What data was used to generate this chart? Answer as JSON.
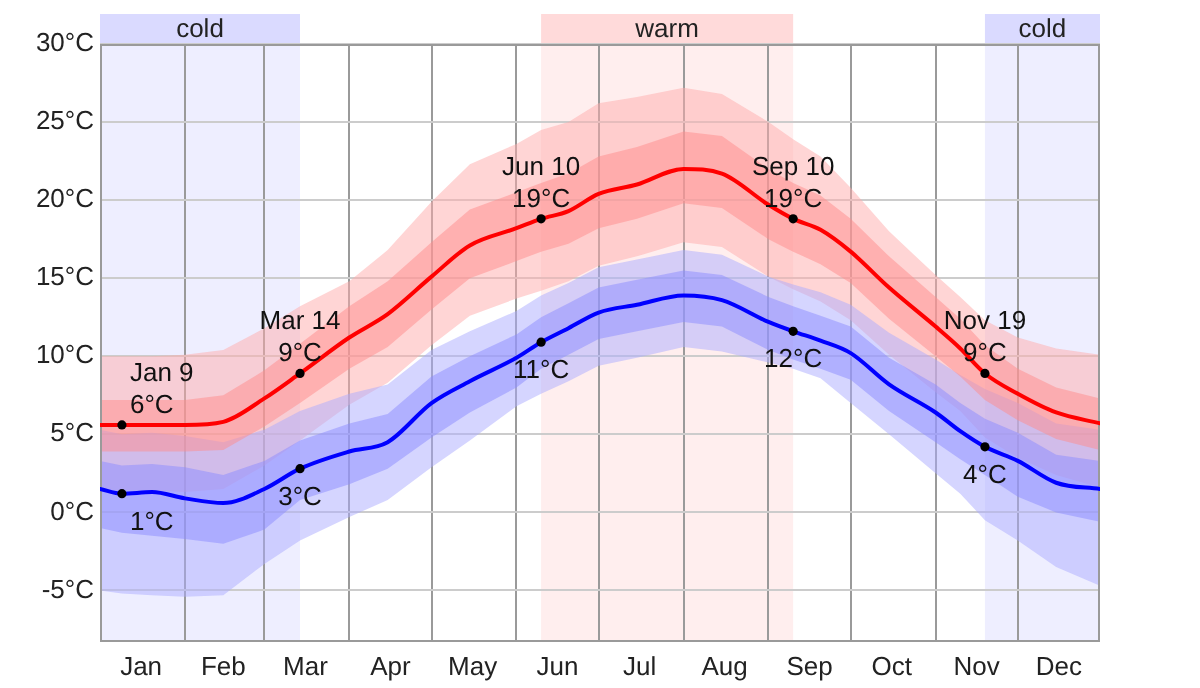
{
  "chart_data": {
    "type": "line",
    "x": [
      "--01-01",
      "--01-09",
      "--01-20",
      "--02-01",
      "--02-15",
      "--03-01",
      "--03-14",
      "--04-01",
      "--04-15",
      "--05-01",
      "--05-15",
      "--06-01",
      "--06-10",
      "--06-20",
      "--07-01",
      "--07-15",
      "--08-01",
      "--08-15",
      "--09-01",
      "--09-10",
      "--09-20",
      "--10-01",
      "--10-15",
      "--11-01",
      "--11-10",
      "--11-19",
      "--12-01",
      "--12-15",
      "--12-31"
    ],
    "series": [
      {
        "color": "#ffd5d5",
        "values": [
          null,
          null,
          null,
          null,
          null,
          null,
          null,
          null,
          null,
          null,
          null,
          null,
          null,
          null,
          null,
          null,
          null,
          null,
          null,
          null,
          null,
          null,
          null,
          null,
          null,
          null,
          null,
          null,
          null
        ],
        "lower": [
          1.5,
          1.4,
          1.4,
          1.3,
          1.5,
          3.0,
          4.6,
          6.9,
          8.3,
          10.7,
          12.6,
          13.7,
          14.2,
          14.8,
          15.8,
          16.4,
          17.3,
          17.0,
          15.1,
          14.3,
          13.5,
          12.3,
          10.1,
          7.7,
          6.5,
          4.8,
          3.5,
          2.4,
          1.6
        ],
        "upper": [
          10.0,
          10.0,
          10.0,
          10.1,
          10.4,
          11.8,
          13.2,
          14.8,
          16.8,
          19.9,
          22.3,
          23.6,
          24.5,
          25.0,
          26.2,
          26.6,
          27.2,
          26.8,
          25.0,
          23.9,
          22.8,
          20.8,
          18.0,
          15.2,
          13.8,
          12.3,
          11.2,
          10.5,
          10.1
        ]
      },
      {
        "color": "#ffb0b0",
        "values": [
          null,
          null,
          null,
          null,
          null,
          null,
          null,
          null,
          null,
          null,
          null,
          null,
          null,
          null,
          null,
          null,
          null,
          null,
          null,
          null,
          null,
          null,
          null,
          null,
          null,
          null,
          null,
          null,
          null
        ],
        "lower": [
          3.9,
          3.9,
          3.9,
          3.9,
          4.0,
          5.5,
          7.0,
          9.2,
          10.6,
          13.0,
          15.0,
          16.1,
          16.7,
          17.2,
          18.2,
          18.8,
          19.8,
          19.5,
          17.5,
          16.7,
          15.9,
          14.7,
          12.4,
          10.0,
          8.7,
          7.2,
          5.9,
          4.7,
          4.0
        ],
        "upper": [
          7.2,
          7.2,
          7.2,
          7.2,
          7.5,
          9.1,
          10.8,
          13.2,
          14.8,
          17.3,
          19.4,
          20.5,
          21.1,
          21.7,
          22.8,
          23.4,
          24.4,
          24.1,
          22.0,
          21.1,
          20.3,
          18.8,
          16.4,
          13.8,
          12.4,
          10.7,
          9.2,
          8.0,
          7.3
        ]
      },
      {
        "color": "#d5d5ff",
        "values": [
          null,
          null,
          null,
          null,
          null,
          null,
          null,
          null,
          null,
          null,
          null,
          null,
          null,
          null,
          null,
          null,
          null,
          null,
          null,
          null,
          null,
          null,
          null,
          null,
          null,
          null,
          null,
          null,
          null
        ],
        "lower": [
          -5.0,
          -5.2,
          -5.3,
          -5.4,
          -5.3,
          -3.3,
          -1.8,
          -0.3,
          0.8,
          2.9,
          4.6,
          6.8,
          7.6,
          8.4,
          9.4,
          9.9,
          10.6,
          10.3,
          9.6,
          9.2,
          8.6,
          7.0,
          5.0,
          2.5,
          1.2,
          -0.5,
          -1.8,
          -3.5,
          -4.7
        ],
        "upper": [
          5.3,
          5.0,
          5.1,
          4.9,
          4.5,
          5.3,
          6.5,
          7.6,
          8.2,
          10.4,
          11.6,
          12.9,
          13.9,
          14.7,
          15.7,
          16.2,
          16.8,
          16.5,
          15.1,
          14.6,
          14.1,
          13.3,
          11.5,
          9.8,
          8.8,
          7.9,
          7.0,
          5.7,
          5.3
        ]
      },
      {
        "color": "#b0b0ff",
        "values": [
          null,
          null,
          null,
          null,
          null,
          null,
          null,
          null,
          null,
          null,
          null,
          null,
          null,
          null,
          null,
          null,
          null,
          null,
          null,
          null,
          null,
          null,
          null,
          null,
          null,
          null,
          null,
          null,
          null
        ],
        "lower": [
          -1.0,
          -1.3,
          -1.5,
          -1.7,
          -2.0,
          -1.1,
          0.8,
          1.8,
          2.8,
          4.8,
          6.4,
          8.0,
          9.2,
          10.1,
          11.1,
          11.6,
          12.2,
          11.9,
          10.4,
          9.8,
          9.2,
          8.5,
          6.5,
          4.5,
          3.4,
          2.4,
          1.0,
          0.0,
          -0.6
        ],
        "upper": [
          3.3,
          3.0,
          3.1,
          2.9,
          2.4,
          3.3,
          4.6,
          5.7,
          6.3,
          8.7,
          10.0,
          11.4,
          12.5,
          13.4,
          14.4,
          14.9,
          15.5,
          15.2,
          13.8,
          13.2,
          12.6,
          11.9,
          9.9,
          8.2,
          7.0,
          6.0,
          5.1,
          3.7,
          3.3
        ]
      },
      {
        "color": "#ff0000",
        "values": [
          5.6,
          5.6,
          5.6,
          5.6,
          5.8,
          7.3,
          8.9,
          11.2,
          12.7,
          15.1,
          17.1,
          18.2,
          18.8,
          19.3,
          20.4,
          21.0,
          22.0,
          21.7,
          19.7,
          18.8,
          18.1,
          16.7,
          14.4,
          11.9,
          10.5,
          8.9,
          7.6,
          6.4,
          5.7
        ]
      },
      {
        "color": "#0000ff",
        "values": [
          1.5,
          1.2,
          1.3,
          0.9,
          0.6,
          1.5,
          2.8,
          3.9,
          4.5,
          7.0,
          8.4,
          9.9,
          10.9,
          11.8,
          12.8,
          13.3,
          13.9,
          13.6,
          12.2,
          11.6,
          11.0,
          10.2,
          8.2,
          6.4,
          5.2,
          4.2,
          3.3,
          1.9,
          1.5
        ]
      }
    ],
    "xlim": [
      "--01-01",
      "--12-31"
    ],
    "xticks": [
      {
        "value": "--01-16",
        "label": "Jan"
      },
      {
        "value": "--02-01",
        "label": null
      },
      {
        "value": "--02-15",
        "label": "Feb"
      },
      {
        "value": "--03-01",
        "label": null
      },
      {
        "value": "--03-16",
        "label": "Mar"
      },
      {
        "value": "--04-01",
        "label": null
      },
      {
        "value": "--04-16",
        "label": "Apr"
      },
      {
        "value": "--05-01",
        "label": null
      },
      {
        "value": "--05-16",
        "label": "May"
      },
      {
        "value": "--06-01",
        "label": null
      },
      {
        "value": "--06-16",
        "label": "Jun"
      },
      {
        "value": "--07-01",
        "label": null
      },
      {
        "value": "--07-16",
        "label": "Jul"
      },
      {
        "value": "--08-01",
        "label": null
      },
      {
        "value": "--08-16",
        "label": "Aug"
      },
      {
        "value": "--09-01",
        "label": null
      },
      {
        "value": "--09-16",
        "label": "Sep"
      },
      {
        "value": "--10-01",
        "label": null
      },
      {
        "value": "--10-16",
        "label": "Oct"
      },
      {
        "value": "--11-01",
        "label": null
      },
      {
        "value": "--11-16",
        "label": "Nov"
      },
      {
        "value": "--12-01",
        "label": null
      },
      {
        "value": "--12-16",
        "label": "Dec"
      }
    ],
    "ylim": [
      -8.3,
      30
    ],
    "yticks": [
      {
        "value": -5,
        "label": "-5°C"
      },
      {
        "value": 0,
        "label": "0°C"
      },
      {
        "value": 5,
        "label": "5°C"
      },
      {
        "value": 10,
        "label": "10°C"
      },
      {
        "value": 15,
        "label": "15°C"
      },
      {
        "value": 20,
        "label": "20°C"
      },
      {
        "value": 25,
        "label": "25°C"
      },
      {
        "value": 30,
        "label": "30°C"
      }
    ],
    "grid": true,
    "bands": [
      {
        "axis": "x",
        "from": "--01-01",
        "to": "--03-14",
        "label": "cold",
        "color": "#eeeeff"
      },
      {
        "axis": "x",
        "from": "--06-10",
        "to": "--09-10",
        "label": "warm",
        "color": "#ffeeee"
      },
      {
        "axis": "x",
        "from": "--11-19",
        "to": "--12-31",
        "label": "cold",
        "color": "#eeeeff"
      }
    ],
    "annotations": [
      {
        "text": "Jan 9\n6°C",
        "x": "--01-09",
        "y": 5.6
      },
      {
        "text": "1°C",
        "x": "--01-09",
        "y": 1.2
      },
      {
        "text": "Mar 14\n9°C",
        "x": "--03-14",
        "y": 8.9
      },
      {
        "text": "3°C",
        "x": "--03-14",
        "y": 2.8
      },
      {
        "text": "Jun 10\n19°C",
        "x": "--06-10",
        "y": 18.8
      },
      {
        "text": "11°C",
        "x": "--06-10",
        "y": 10.9
      },
      {
        "text": "Sep 10\n19°C",
        "x": "--09-10",
        "y": 18.8
      },
      {
        "text": "12°C",
        "x": "--09-10",
        "y": 11.6
      },
      {
        "text": "Nov 19\n9°C",
        "x": "--11-19",
        "y": 8.9
      },
      {
        "text": "4°C",
        "x": "--11-19",
        "y": 4.2
      }
    ]
  }
}
